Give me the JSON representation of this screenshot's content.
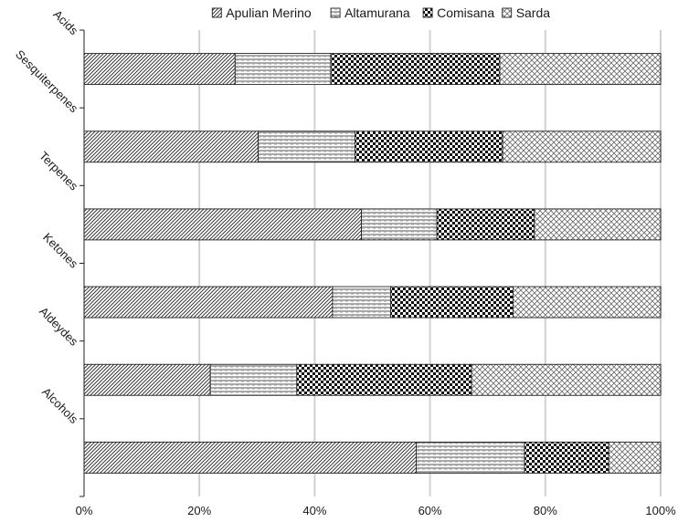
{
  "chart_data": {
    "type": "bar",
    "orientation": "horizontal",
    "stacked": "percent",
    "categories": [
      "Acids",
      "Sesquiterpenes",
      "Terpenes",
      "Ketones",
      "Aldeydes",
      "Alcohols"
    ],
    "series": [
      {
        "name": "Apulian Merino",
        "values": [
          26.2,
          30.2,
          48.1,
          43.1,
          21.9,
          57.6
        ],
        "pattern": "diagonal-fine"
      },
      {
        "name": "Altamurana",
        "values": [
          16.6,
          16.8,
          13.1,
          10.1,
          15.0,
          18.8
        ],
        "pattern": "horizontal-lines"
      },
      {
        "name": "Comisana",
        "values": [
          29.3,
          25.6,
          16.9,
          21.2,
          30.3,
          14.6
        ],
        "pattern": "checker"
      },
      {
        "name": "Sarda",
        "values": [
          27.9,
          27.4,
          21.9,
          25.6,
          32.8,
          9.0
        ],
        "pattern": "crosshatch"
      }
    ],
    "xlabel": "",
    "ylabel": "",
    "xlim": [
      0,
      100
    ],
    "xticks": [
      "0%",
      "20%",
      "40%",
      "60%",
      "80%",
      "100%"
    ],
    "grid": "vertical",
    "legend": "top"
  }
}
